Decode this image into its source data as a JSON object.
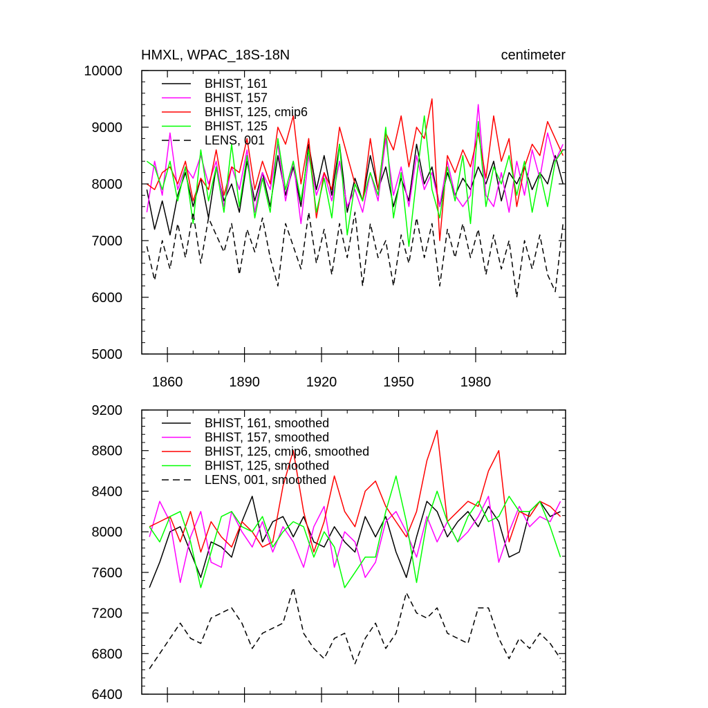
{
  "chart_data": [
    {
      "type": "line",
      "title": "HMXL, WPAC_18S-18N",
      "units": "centimeter",
      "xlim": [
        1850,
        2015
      ],
      "ylim": [
        5000,
        10000
      ],
      "xticks": [
        1860,
        1890,
        1920,
        1950,
        1980
      ],
      "yticks": [
        5000,
        6000,
        7000,
        8000,
        9000,
        10000
      ],
      "x": [
        1852,
        1855,
        1858,
        1861,
        1864,
        1867,
        1870,
        1873,
        1876,
        1879,
        1882,
        1885,
        1888,
        1891,
        1894,
        1897,
        1900,
        1903,
        1906,
        1909,
        1912,
        1915,
        1918,
        1921,
        1924,
        1927,
        1930,
        1933,
        1936,
        1939,
        1942,
        1945,
        1948,
        1951,
        1954,
        1957,
        1960,
        1963,
        1966,
        1969,
        1972,
        1975,
        1978,
        1981,
        1984,
        1987,
        1990,
        1993,
        1996,
        1999,
        2002,
        2005,
        2008,
        2011,
        2014
      ],
      "series": [
        {
          "name": "BHIST, 161",
          "color": "#000000",
          "dash": "solid",
          "values": [
            7900,
            7200,
            7700,
            7100,
            7800,
            8200,
            7600,
            8100,
            7400,
            8300,
            7700,
            8000,
            7500,
            8400,
            7700,
            8200,
            7600,
            8500,
            7800,
            8300,
            7600,
            8700,
            7900,
            8500,
            7800,
            8700,
            7500,
            8100,
            7700,
            8500,
            7900,
            8300,
            7600,
            8100,
            7700,
            8700,
            8000,
            8300,
            7600,
            8200,
            7800,
            8100,
            7900,
            8300,
            8000,
            8400,
            7700,
            8200,
            8000,
            8300,
            7900,
            8200,
            8000,
            8500,
            8000
          ]
        },
        {
          "name": "BHIST, 157",
          "color": "#ff00ff",
          "dash": "solid",
          "values": [
            7500,
            8400,
            7800,
            8900,
            7900,
            8300,
            8100,
            8500,
            8000,
            8400,
            7600,
            8300,
            7900,
            8600,
            7500,
            8200,
            7900,
            8700,
            7700,
            8400,
            7300,
            8500,
            7800,
            8200,
            7700,
            8400,
            7600,
            7900,
            7500,
            8200,
            7700,
            8800,
            7800,
            8300,
            7600,
            8500,
            7900,
            8200,
            7600,
            8400,
            7800,
            7600,
            7800,
            9400,
            7800,
            7600,
            8200,
            7500,
            8400,
            7800,
            8600,
            8100,
            8900,
            8400,
            8700
          ]
        },
        {
          "name": "BHIST, 125, cmip6",
          "color": "#ff0000",
          "dash": "solid",
          "values": [
            8000,
            7900,
            8200,
            8300,
            8000,
            8400,
            7700,
            8100,
            7900,
            8600,
            7800,
            8300,
            8200,
            8800,
            7900,
            8400,
            8000,
            9000,
            8700,
            9200,
            8000,
            8800,
            7400,
            8200,
            7900,
            9000,
            8500,
            8000,
            7700,
            8800,
            7900,
            8900,
            8600,
            9200,
            8300,
            9000,
            8800,
            9500,
            7000,
            8500,
            8200,
            8600,
            8300,
            8900,
            8100,
            9200,
            8400,
            8800,
            7600,
            8300,
            8700,
            8500,
            9100,
            8800,
            8500
          ]
        },
        {
          "name": "BHIST, 125",
          "color": "#00ff00",
          "dash": "solid",
          "values": [
            8400,
            8300,
            7900,
            8400,
            7700,
            8300,
            7300,
            8600,
            7700,
            8300,
            7500,
            8700,
            7600,
            8500,
            7400,
            8100,
            7500,
            8800,
            7900,
            8400,
            7700,
            8600,
            7500,
            8100,
            7400,
            8700,
            7100,
            8000,
            7700,
            8200,
            7800,
            9000,
            7400,
            8200,
            6900,
            8100,
            9200,
            7900,
            7400,
            8300,
            7700,
            8500,
            7300,
            9100,
            7600,
            8300,
            8000,
            8500,
            7800,
            8400,
            7500,
            8200,
            7600,
            8400,
            8600
          ]
        },
        {
          "name": "LENS, 001",
          "color": "#000000",
          "dash": "dashed",
          "values": [
            6900,
            6300,
            7000,
            6500,
            7300,
            6700,
            7500,
            6600,
            7400,
            7100,
            6800,
            7300,
            6400,
            7200,
            6800,
            7400,
            6700,
            6200,
            7300,
            6900,
            6500,
            7500,
            6600,
            7200,
            6400,
            7300,
            6700,
            7500,
            6200,
            7300,
            6700,
            7000,
            6200,
            7100,
            6600,
            7400,
            6700,
            7300,
            6200,
            7200,
            6700,
            7300,
            6700,
            7200,
            6400,
            7100,
            6500,
            7000,
            6000,
            7000,
            6500,
            7100,
            6400,
            6100,
            7300
          ]
        }
      ]
    },
    {
      "type": "line",
      "xlim": [
        1850,
        2015
      ],
      "ylim": [
        6400,
        9200
      ],
      "xticks": [
        1860,
        1890,
        1920,
        1950,
        1980
      ],
      "yticks": [
        6400,
        6800,
        7200,
        7600,
        8000,
        8400,
        8800,
        9200
      ],
      "x": [
        1853,
        1857,
        1861,
        1865,
        1869,
        1873,
        1877,
        1881,
        1885,
        1889,
        1893,
        1897,
        1901,
        1905,
        1909,
        1913,
        1917,
        1921,
        1925,
        1929,
        1933,
        1937,
        1941,
        1945,
        1949,
        1953,
        1957,
        1961,
        1965,
        1969,
        1973,
        1977,
        1981,
        1985,
        1989,
        1993,
        1997,
        2001,
        2005,
        2009,
        2013
      ],
      "series": [
        {
          "name": "BHIST, 161, smoothed",
          "color": "#000000",
          "dash": "solid",
          "values": [
            7450,
            7700,
            8000,
            8050,
            7800,
            7550,
            7900,
            7850,
            7750,
            8100,
            8350,
            7900,
            8100,
            8150,
            7950,
            8150,
            7900,
            7850,
            8050,
            7900,
            7800,
            8150,
            7950,
            8150,
            7800,
            7550,
            7950,
            8300,
            8200,
            7950,
            8100,
            8200,
            8050,
            8250,
            8100,
            7750,
            7800,
            8200,
            8300,
            8150,
            8200
          ]
        },
        {
          "name": "BHIST, 157, smoothed",
          "color": "#ff00ff",
          "dash": "solid",
          "values": [
            7950,
            8300,
            8100,
            7500,
            7950,
            8200,
            7700,
            7650,
            8200,
            8000,
            7850,
            8100,
            7800,
            8050,
            7900,
            7650,
            8050,
            8250,
            7650,
            8000,
            7900,
            7550,
            7700,
            8100,
            8200,
            8000,
            7750,
            8150,
            7900,
            8100,
            7900,
            8000,
            8150,
            8350,
            7700,
            8000,
            8250,
            8050,
            8150,
            8100,
            8300
          ]
        },
        {
          "name": "BHIST, 125, cmip6, smoothed",
          "color": "#ff0000",
          "dash": "solid",
          "values": [
            8050,
            8100,
            8150,
            7900,
            8200,
            7800,
            8100,
            7950,
            7850,
            8100,
            8000,
            7850,
            7900,
            8450,
            8800,
            8200,
            7800,
            8100,
            8550,
            8200,
            8050,
            8400,
            8500,
            8250,
            8100,
            7950,
            8200,
            8700,
            9000,
            8100,
            8200,
            8300,
            8250,
            8600,
            8800,
            7900,
            8200,
            8150,
            8300,
            8250,
            8150
          ]
        },
        {
          "name": "BHIST, 125, smoothed",
          "color": "#00ff00",
          "dash": "solid",
          "values": [
            8050,
            7900,
            8150,
            8200,
            7900,
            7450,
            7800,
            8150,
            8200,
            8050,
            8000,
            8150,
            7850,
            8000,
            8100,
            8050,
            7750,
            8000,
            7850,
            7450,
            7600,
            7750,
            7750,
            8200,
            8550,
            8100,
            7500,
            8100,
            8400,
            8100,
            7900,
            8150,
            8300,
            8100,
            8150,
            8350,
            8200,
            8200,
            8300,
            8050,
            7750
          ]
        },
        {
          "name": "LENS, 001, smoothed",
          "color": "#000000",
          "dash": "dashed",
          "values": [
            6650,
            6800,
            6950,
            7100,
            6950,
            6900,
            7150,
            7200,
            7250,
            7100,
            6850,
            7000,
            7050,
            7100,
            7450,
            7000,
            6850,
            6750,
            6950,
            7000,
            6700,
            6950,
            7100,
            6850,
            7000,
            7400,
            7200,
            7150,
            7250,
            7000,
            6950,
            6900,
            7250,
            7250,
            6950,
            6750,
            6950,
            6850,
            7000,
            6900,
            6750
          ]
        }
      ]
    }
  ]
}
